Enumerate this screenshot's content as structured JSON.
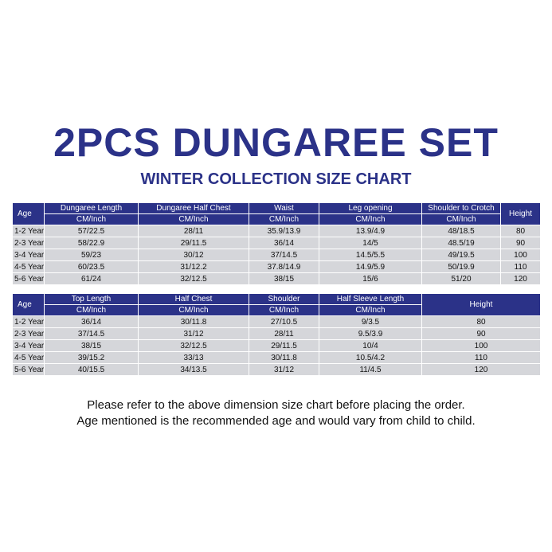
{
  "header": {
    "title": "2PCS DUNGAREE SET",
    "subtitle": "WINTER COLLECTION SIZE CHART"
  },
  "tables": [
    {
      "headers": [
        {
          "label": "Age"
        },
        {
          "label": "Dungaree Length",
          "unit": "CM/Inch"
        },
        {
          "label": "Dungaree Half Chest",
          "unit": "CM/Inch"
        },
        {
          "label": "Waist",
          "unit": "CM/Inch"
        },
        {
          "label": "Leg opening",
          "unit": "CM/Inch"
        },
        {
          "label": "Shoulder to Crotch",
          "unit": "CM/Inch"
        },
        {
          "label": "Height"
        }
      ],
      "rows": [
        [
          "1-2 Year",
          "57/22.5",
          "28/11",
          "35.9/13.9",
          "13.9/4.9",
          "48/18.5",
          "80"
        ],
        [
          "2-3 Year",
          "58/22.9",
          "29/11.5",
          "36/14",
          "14/5",
          "48.5/19",
          "90"
        ],
        [
          "3-4 Year",
          "59/23",
          "30/12",
          "37/14.5",
          "14.5/5.5",
          "49/19.5",
          "100"
        ],
        [
          "4-5 Year",
          "60/23.5",
          "31/12.2",
          "37.8/14.9",
          "14.9/5.9",
          "50/19.9",
          "110"
        ],
        [
          "5-6 Year",
          "61/24",
          "32/12.5",
          "38/15",
          "15/6",
          "51/20",
          "120"
        ]
      ]
    },
    {
      "headers": [
        {
          "label": "Age"
        },
        {
          "label": "Top Length",
          "unit": "CM/Inch"
        },
        {
          "label": "Half Chest",
          "unit": "CM/Inch"
        },
        {
          "label": "Shoulder",
          "unit": "CM/Inch"
        },
        {
          "label": "Half Sleeve Length",
          "unit": "CM/Inch"
        },
        {
          "label": "Height"
        }
      ],
      "rows": [
        [
          "1-2 Year",
          "36/14",
          "30/11.8",
          "27/10.5",
          "9/3.5",
          "80"
        ],
        [
          "2-3 Year",
          "37/14.5",
          "31/12",
          "28/11",
          "9.5/3.9",
          "90"
        ],
        [
          "3-4 Year",
          "38/15",
          "32/12.5",
          "29/11.5",
          "10/4",
          "100"
        ],
        [
          "4-5 Year",
          "39/15.2",
          "33/13",
          "30/11.8",
          "10.5/4.2",
          "110"
        ],
        [
          "5-6 Year",
          "40/15.5",
          "34/13.5",
          "31/12",
          "11/4.5",
          "120"
        ]
      ]
    }
  ],
  "footer": {
    "lines": [
      "Please refer to the above dimension size chart before placing the order.",
      "Age mentioned is the recommended age and would vary from child to child."
    ]
  }
}
